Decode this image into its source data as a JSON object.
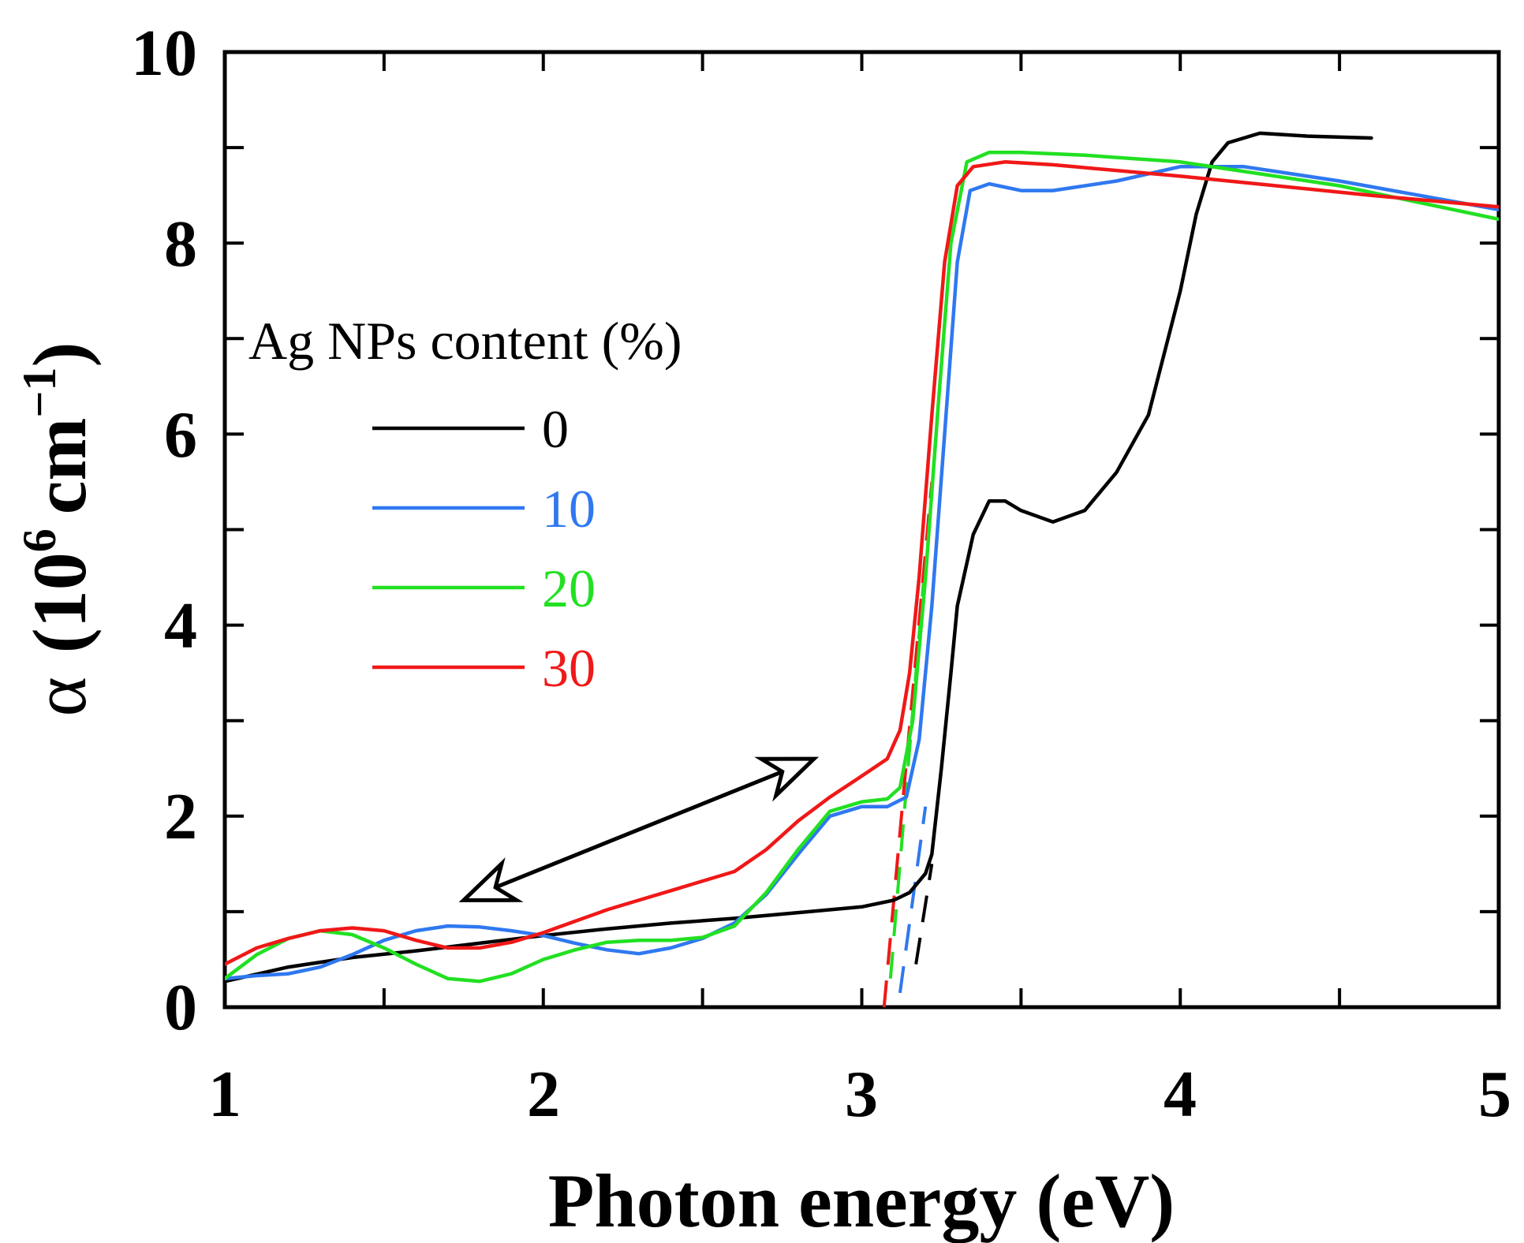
{
  "chart_data": {
    "type": "line",
    "title": "",
    "xlabel": "Photon energy (eV)",
    "ylabel_parts": {
      "symbol": "α",
      "open": "(10",
      "exp": "6",
      "unit": "cm",
      "neg_exp": "−1",
      "close": ")"
    },
    "xlim": [
      1,
      5
    ],
    "ylim": [
      0,
      10
    ],
    "x_ticks": [
      1,
      2,
      3,
      4,
      5
    ],
    "y_ticks": [
      0,
      2,
      4,
      6,
      8,
      10
    ],
    "x_minor_step": 0.5,
    "y_minor_step": 1,
    "grid": false,
    "legend": {
      "title": "Ag NPs content (%)",
      "position": "left-middle"
    },
    "series": [
      {
        "name": "0",
        "color": "#000000",
        "points": [
          [
            1.0,
            0.27
          ],
          [
            1.2,
            0.42
          ],
          [
            1.4,
            0.52
          ],
          [
            1.6,
            0.59
          ],
          [
            1.8,
            0.67
          ],
          [
            2.0,
            0.75
          ],
          [
            2.2,
            0.82
          ],
          [
            2.4,
            0.88
          ],
          [
            2.6,
            0.93
          ],
          [
            2.8,
            0.99
          ],
          [
            3.0,
            1.05
          ],
          [
            3.1,
            1.12
          ],
          [
            3.15,
            1.2
          ],
          [
            3.2,
            1.4
          ],
          [
            3.22,
            1.6
          ],
          [
            3.25,
            2.5
          ],
          [
            3.28,
            3.5
          ],
          [
            3.3,
            4.2
          ],
          [
            3.35,
            4.95
          ],
          [
            3.4,
            5.3
          ],
          [
            3.45,
            5.3
          ],
          [
            3.5,
            5.2
          ],
          [
            3.6,
            5.08
          ],
          [
            3.7,
            5.2
          ],
          [
            3.8,
            5.6
          ],
          [
            3.9,
            6.2
          ],
          [
            4.0,
            7.5
          ],
          [
            4.05,
            8.3
          ],
          [
            4.1,
            8.85
          ],
          [
            4.15,
            9.05
          ],
          [
            4.25,
            9.15
          ],
          [
            4.4,
            9.12
          ],
          [
            4.6,
            9.1
          ]
        ]
      },
      {
        "name": "10",
        "color": "#2f78f0",
        "points": [
          [
            1.0,
            0.3
          ],
          [
            1.1,
            0.33
          ],
          [
            1.2,
            0.35
          ],
          [
            1.3,
            0.42
          ],
          [
            1.4,
            0.55
          ],
          [
            1.5,
            0.7
          ],
          [
            1.6,
            0.8
          ],
          [
            1.7,
            0.85
          ],
          [
            1.8,
            0.84
          ],
          [
            1.9,
            0.8
          ],
          [
            2.0,
            0.75
          ],
          [
            2.1,
            0.67
          ],
          [
            2.2,
            0.6
          ],
          [
            2.3,
            0.56
          ],
          [
            2.4,
            0.62
          ],
          [
            2.5,
            0.72
          ],
          [
            2.6,
            0.88
          ],
          [
            2.7,
            1.18
          ],
          [
            2.8,
            1.6
          ],
          [
            2.9,
            2.0
          ],
          [
            3.0,
            2.1
          ],
          [
            3.08,
            2.1
          ],
          [
            3.14,
            2.2
          ],
          [
            3.18,
            2.8
          ],
          [
            3.22,
            4.2
          ],
          [
            3.26,
            6.0
          ],
          [
            3.3,
            7.8
          ],
          [
            3.34,
            8.55
          ],
          [
            3.4,
            8.62
          ],
          [
            3.5,
            8.55
          ],
          [
            3.6,
            8.55
          ],
          [
            3.8,
            8.65
          ],
          [
            4.0,
            8.8
          ],
          [
            4.2,
            8.8
          ],
          [
            4.5,
            8.65
          ],
          [
            5.0,
            8.35
          ]
        ]
      },
      {
        "name": "20",
        "color": "#22e022",
        "points": [
          [
            1.0,
            0.3
          ],
          [
            1.1,
            0.55
          ],
          [
            1.2,
            0.72
          ],
          [
            1.3,
            0.8
          ],
          [
            1.4,
            0.76
          ],
          [
            1.5,
            0.62
          ],
          [
            1.6,
            0.45
          ],
          [
            1.7,
            0.3
          ],
          [
            1.8,
            0.27
          ],
          [
            1.9,
            0.35
          ],
          [
            2.0,
            0.5
          ],
          [
            2.1,
            0.6
          ],
          [
            2.2,
            0.68
          ],
          [
            2.3,
            0.7
          ],
          [
            2.4,
            0.7
          ],
          [
            2.5,
            0.73
          ],
          [
            2.6,
            0.85
          ],
          [
            2.7,
            1.2
          ],
          [
            2.8,
            1.65
          ],
          [
            2.9,
            2.05
          ],
          [
            3.0,
            2.15
          ],
          [
            3.08,
            2.18
          ],
          [
            3.12,
            2.3
          ],
          [
            3.16,
            3.0
          ],
          [
            3.2,
            4.5
          ],
          [
            3.24,
            6.3
          ],
          [
            3.28,
            8.0
          ],
          [
            3.33,
            8.85
          ],
          [
            3.4,
            8.95
          ],
          [
            3.5,
            8.95
          ],
          [
            3.7,
            8.92
          ],
          [
            4.0,
            8.85
          ],
          [
            4.2,
            8.75
          ],
          [
            4.5,
            8.6
          ],
          [
            5.0,
            8.25
          ]
        ]
      },
      {
        "name": "30",
        "color": "#f01818",
        "points": [
          [
            1.0,
            0.45
          ],
          [
            1.1,
            0.62
          ],
          [
            1.2,
            0.72
          ],
          [
            1.3,
            0.8
          ],
          [
            1.4,
            0.83
          ],
          [
            1.5,
            0.8
          ],
          [
            1.6,
            0.7
          ],
          [
            1.7,
            0.62
          ],
          [
            1.8,
            0.62
          ],
          [
            1.9,
            0.68
          ],
          [
            2.0,
            0.78
          ],
          [
            2.1,
            0.9
          ],
          [
            2.2,
            1.02
          ],
          [
            2.3,
            1.12
          ],
          [
            2.4,
            1.22
          ],
          [
            2.5,
            1.32
          ],
          [
            2.6,
            1.42
          ],
          [
            2.7,
            1.65
          ],
          [
            2.8,
            1.95
          ],
          [
            2.9,
            2.2
          ],
          [
            3.0,
            2.42
          ],
          [
            3.08,
            2.6
          ],
          [
            3.12,
            2.9
          ],
          [
            3.15,
            3.5
          ],
          [
            3.18,
            4.5
          ],
          [
            3.22,
            6.2
          ],
          [
            3.26,
            7.8
          ],
          [
            3.3,
            8.6
          ],
          [
            3.35,
            8.8
          ],
          [
            3.45,
            8.85
          ],
          [
            3.6,
            8.82
          ],
          [
            4.0,
            8.7
          ],
          [
            4.3,
            8.6
          ],
          [
            4.6,
            8.5
          ],
          [
            5.0,
            8.38
          ]
        ]
      }
    ],
    "fit_lines": [
      {
        "series": "0",
        "color": "#000000",
        "from": [
          3.17,
          0.45
        ],
        "to": [
          3.22,
          1.5
        ]
      },
      {
        "series": "10",
        "color": "#2f78f0",
        "from": [
          3.12,
          0.15
        ],
        "to": [
          3.2,
          2.1
        ]
      },
      {
        "series": "20",
        "color": "#22e022",
        "from": [
          3.09,
          0.3
        ],
        "to": [
          3.2,
          4.7
        ]
      },
      {
        "series": "30",
        "color": "#f01818",
        "from": [
          3.07,
          0.0
        ],
        "to": [
          3.22,
          5.5
        ]
      }
    ],
    "annotations": [
      {
        "type": "double-arrow",
        "color": "#000000",
        "from": [
          1.75,
          1.12
        ],
        "to": [
          2.85,
          2.6
        ]
      }
    ]
  }
}
